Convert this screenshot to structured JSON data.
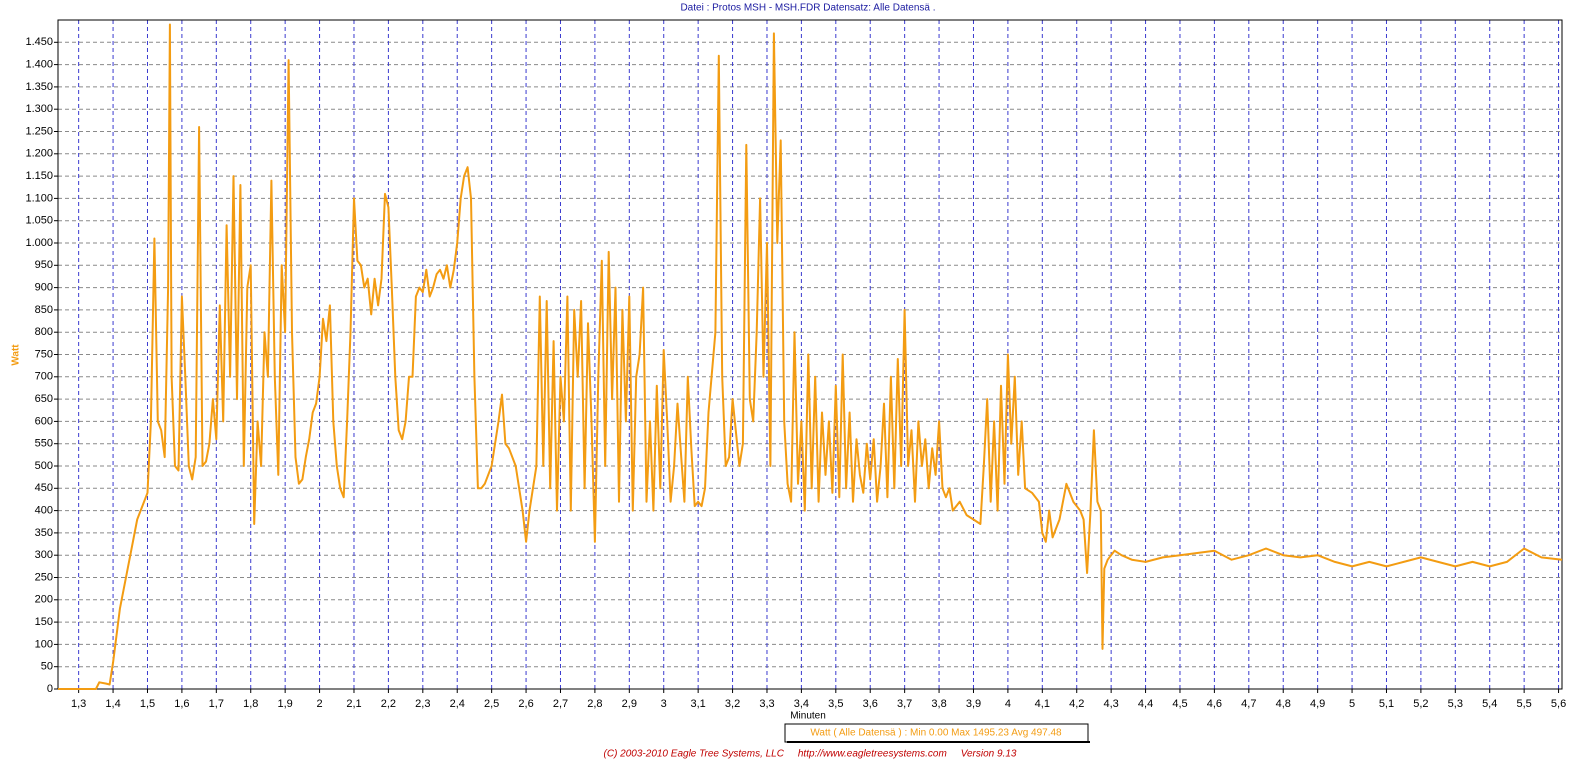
{
  "chart_data": {
    "type": "line",
    "title": "Datei : Protos MSH - MSH.FDR  Datensatz: Alle Datensä .",
    "xlabel": "Minuten",
    "ylabel": "Watt",
    "legend_text": "Watt ( Alle Datensä ) : Min 0.00  Max 1495.23  Avg 497.48",
    "footer": "(C) 2003-2010 Eagle Tree Systems, LLC     http://www.eagletreesystems.com     Version 9.13",
    "grid": true,
    "xlim": [
      1.24,
      5.61
    ],
    "ylim": [
      0,
      1500
    ],
    "xticks": [
      {
        "value": 1.3,
        "label": "1,3"
      },
      {
        "value": 1.4,
        "label": "1,4"
      },
      {
        "value": 1.5,
        "label": "1,5"
      },
      {
        "value": 1.6,
        "label": "1,6"
      },
      {
        "value": 1.7,
        "label": "1,7"
      },
      {
        "value": 1.8,
        "label": "1,8"
      },
      {
        "value": 1.9,
        "label": "1,9"
      },
      2,
      {
        "value": 2.1,
        "label": "2,1"
      },
      {
        "value": 2.2,
        "label": "2,2"
      },
      {
        "value": 2.3,
        "label": "2,3"
      },
      {
        "value": 2.4,
        "label": "2,4"
      },
      {
        "value": 2.5,
        "label": "2,5"
      },
      {
        "value": 2.6,
        "label": "2,6"
      },
      {
        "value": 2.7,
        "label": "2,7"
      },
      {
        "value": 2.8,
        "label": "2,8"
      },
      {
        "value": 2.9,
        "label": "2,9"
      },
      3,
      {
        "value": 3.1,
        "label": "3,1"
      },
      {
        "value": 3.2,
        "label": "3,2"
      },
      {
        "value": 3.3,
        "label": "3,3"
      },
      {
        "value": 3.4,
        "label": "3,4"
      },
      {
        "value": 3.5,
        "label": "3,5"
      },
      {
        "value": 3.6,
        "label": "3,6"
      },
      {
        "value": 3.7,
        "label": "3,7"
      },
      {
        "value": 3.8,
        "label": "3,8"
      },
      {
        "value": 3.9,
        "label": "3,9"
      },
      4,
      {
        "value": 4.1,
        "label": "4,1"
      },
      {
        "value": 4.2,
        "label": "4,2"
      },
      {
        "value": 4.3,
        "label": "4,3"
      },
      {
        "value": 4.4,
        "label": "4,4"
      },
      {
        "value": 4.5,
        "label": "4,5"
      },
      {
        "value": 4.6,
        "label": "4,6"
      },
      {
        "value": 4.7,
        "label": "4,7"
      },
      {
        "value": 4.8,
        "label": "4,8"
      },
      {
        "value": 4.9,
        "label": "4,9"
      },
      5,
      {
        "value": 5.1,
        "label": "5,1"
      },
      {
        "value": 5.2,
        "label": "5,2"
      },
      {
        "value": 5.3,
        "label": "5,3"
      },
      {
        "value": 5.4,
        "label": "5,4"
      },
      {
        "value": 5.5,
        "label": "5,5"
      },
      {
        "value": 5.6,
        "label": "5,6"
      }
    ],
    "yticks": [
      0,
      50,
      100,
      150,
      200,
      250,
      300,
      350,
      400,
      450,
      500,
      550,
      600,
      650,
      700,
      750,
      800,
      850,
      900,
      950,
      {
        "value": 1000,
        "label": "1.000"
      },
      {
        "value": 1050,
        "label": "1.050"
      },
      {
        "value": 1100,
        "label": "1.100"
      },
      {
        "value": 1150,
        "label": "1.150"
      },
      {
        "value": 1200,
        "label": "1.200"
      },
      {
        "value": 1250,
        "label": "1.250"
      },
      {
        "value": 1300,
        "label": "1.300"
      },
      {
        "value": 1350,
        "label": "1.350"
      },
      {
        "value": 1400,
        "label": "1.400"
      },
      {
        "value": 1450,
        "label": "1.450"
      }
    ],
    "series": [
      {
        "name": "Watt",
        "color": "#f39c12",
        "x": [
          1.24,
          1.35,
          1.36,
          1.38,
          1.39,
          1.4,
          1.42,
          1.45,
          1.47,
          1.5,
          1.51,
          1.52,
          1.53,
          1.54,
          1.55,
          1.56,
          1.565,
          1.57,
          1.58,
          1.59,
          1.6,
          1.61,
          1.62,
          1.63,
          1.64,
          1.65,
          1.66,
          1.67,
          1.68,
          1.69,
          1.7,
          1.71,
          1.72,
          1.73,
          1.74,
          1.75,
          1.76,
          1.77,
          1.78,
          1.79,
          1.8,
          1.81,
          1.82,
          1.83,
          1.84,
          1.85,
          1.86,
          1.87,
          1.88,
          1.89,
          1.9,
          1.91,
          1.92,
          1.93,
          1.94,
          1.95,
          1.96,
          1.97,
          1.98,
          1.99,
          2.0,
          2.01,
          2.02,
          2.03,
          2.04,
          2.05,
          2.06,
          2.07,
          2.08,
          2.09,
          2.1,
          2.11,
          2.12,
          2.13,
          2.14,
          2.15,
          2.16,
          2.17,
          2.18,
          2.19,
          2.2,
          2.21,
          2.22,
          2.23,
          2.24,
          2.25,
          2.26,
          2.27,
          2.28,
          2.29,
          2.3,
          2.31,
          2.32,
          2.33,
          2.34,
          2.35,
          2.36,
          2.37,
          2.38,
          2.39,
          2.4,
          2.41,
          2.42,
          2.43,
          2.44,
          2.45,
          2.46,
          2.47,
          2.48,
          2.5,
          2.52,
          2.53,
          2.54,
          2.55,
          2.57,
          2.59,
          2.6,
          2.61,
          2.63,
          2.64,
          2.65,
          2.66,
          2.67,
          2.68,
          2.69,
          2.7,
          2.71,
          2.72,
          2.73,
          2.74,
          2.75,
          2.76,
          2.77,
          2.78,
          2.79,
          2.8,
          2.81,
          2.82,
          2.83,
          2.84,
          2.85,
          2.86,
          2.87,
          2.88,
          2.89,
          2.9,
          2.91,
          2.92,
          2.93,
          2.94,
          2.95,
          2.96,
          2.97,
          2.98,
          2.99,
          3.0,
          3.01,
          3.02,
          3.03,
          3.04,
          3.05,
          3.06,
          3.07,
          3.08,
          3.09,
          3.1,
          3.11,
          3.12,
          3.13,
          3.15,
          3.16,
          3.17,
          3.18,
          3.19,
          3.2,
          3.22,
          3.23,
          3.24,
          3.25,
          3.26,
          3.27,
          3.28,
          3.29,
          3.3,
          3.31,
          3.32,
          3.33,
          3.34,
          3.35,
          3.36,
          3.37,
          3.38,
          3.39,
          3.4,
          3.41,
          3.42,
          3.43,
          3.44,
          3.45,
          3.46,
          3.47,
          3.48,
          3.49,
          3.5,
          3.51,
          3.52,
          3.53,
          3.54,
          3.55,
          3.56,
          3.57,
          3.58,
          3.59,
          3.6,
          3.61,
          3.62,
          3.63,
          3.64,
          3.65,
          3.66,
          3.67,
          3.68,
          3.69,
          3.7,
          3.71,
          3.72,
          3.73,
          3.74,
          3.75,
          3.76,
          3.77,
          3.78,
          3.79,
          3.8,
          3.81,
          3.82,
          3.83,
          3.84,
          3.86,
          3.88,
          3.9,
          3.92,
          3.93,
          3.94,
          3.95,
          3.96,
          3.97,
          3.98,
          3.99,
          4.0,
          4.01,
          4.02,
          4.03,
          4.04,
          4.05,
          4.07,
          4.09,
          4.1,
          4.11,
          4.12,
          4.13,
          4.15,
          4.17,
          4.19,
          4.21,
          4.22,
          4.23,
          4.24,
          4.25,
          4.26,
          4.27,
          4.275,
          4.28,
          4.29,
          4.31,
          4.33,
          4.36,
          4.4,
          4.45,
          4.5,
          4.55,
          4.6,
          4.65,
          4.7,
          4.75,
          4.8,
          4.85,
          4.9,
          4.95,
          5.0,
          5.05,
          5.1,
          5.15,
          5.2,
          5.25,
          5.3,
          5.35,
          5.4,
          5.45,
          5.5,
          5.55,
          5.61
        ],
        "values": [
          0,
          0,
          15,
          12,
          10,
          60,
          180,
          300,
          380,
          440,
          600,
          1010,
          600,
          580,
          520,
          900,
          1490,
          700,
          500,
          490,
          880,
          700,
          500,
          470,
          520,
          1260,
          500,
          510,
          550,
          650,
          560,
          860,
          600,
          1040,
          700,
          1150,
          650,
          1130,
          500,
          900,
          950,
          370,
          600,
          500,
          800,
          700,
          1140,
          700,
          480,
          950,
          800,
          1410,
          800,
          520,
          460,
          470,
          520,
          560,
          620,
          640,
          700,
          830,
          780,
          860,
          600,
          500,
          450,
          430,
          600,
          800,
          1100,
          960,
          950,
          900,
          920,
          840,
          920,
          860,
          920,
          1110,
          1080,
          900,
          700,
          580,
          560,
          600,
          700,
          700,
          880,
          900,
          890,
          940,
          880,
          900,
          930,
          940,
          920,
          950,
          900,
          940,
          1000,
          1100,
          1150,
          1170,
          1100,
          700,
          450,
          450,
          460,
          500,
          600,
          660,
          550,
          540,
          500,
          400,
          330,
          400,
          500,
          880,
          500,
          870,
          450,
          780,
          400,
          700,
          600,
          880,
          400,
          850,
          700,
          870,
          450,
          820,
          600,
          330,
          700,
          960,
          500,
          980,
          650,
          900,
          420,
          850,
          600,
          880,
          400,
          700,
          750,
          900,
          420,
          600,
          400,
          680,
          450,
          760,
          600,
          420,
          500,
          640,
          530,
          420,
          700,
          540,
          410,
          420,
          410,
          450,
          620,
          800,
          1420,
          700,
          500,
          520,
          650,
          500,
          550,
          1220,
          650,
          600,
          800,
          1100,
          700,
          1000,
          500,
          1470,
          1000,
          1230,
          600,
          460,
          420,
          800,
          460,
          600,
          400,
          750,
          450,
          700,
          420,
          620,
          480,
          600,
          440,
          680,
          430,
          750,
          450,
          620,
          420,
          560,
          480,
          440,
          550,
          470,
          560,
          420,
          500,
          640,
          430,
          700,
          450,
          740,
          500,
          850,
          500,
          580,
          420,
          600,
          500,
          560,
          450,
          540,
          480,
          600,
          450,
          430,
          450,
          400,
          420,
          390,
          380,
          370,
          500,
          650,
          420,
          600,
          400,
          680,
          460,
          750,
          550,
          700,
          480,
          600,
          450,
          440,
          420,
          350,
          330,
          400,
          340,
          380,
          460,
          420,
          400,
          380,
          260,
          400,
          580,
          420,
          400,
          90,
          270,
          290,
          310,
          300,
          290,
          285,
          295,
          300,
          305,
          310,
          290,
          300,
          315,
          300,
          295,
          300,
          285,
          275,
          285,
          275,
          285,
          295,
          285,
          275,
          285,
          275,
          285,
          315,
          295,
          290
        ]
      }
    ]
  }
}
